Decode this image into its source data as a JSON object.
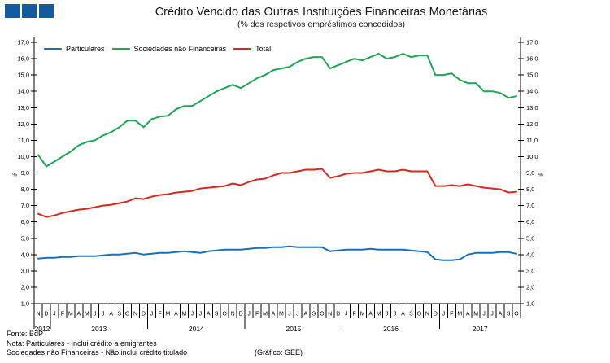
{
  "logo": {
    "color": "#15599E",
    "square_count": 3
  },
  "chart_data": {
    "type": "line",
    "title": "Crédito Vencido das Outras Instituições Financeiras Monetárias",
    "subtitle": "(% dos respetivos empréstimos concedidos)",
    "xlabel": "",
    "ylabel": "%",
    "ylim": [
      1.0,
      17.0
    ],
    "ytick_step": 1.0,
    "ytick_labels": [
      "1,0",
      "2,0",
      "3,0",
      "4,0",
      "5,0",
      "6,0",
      "7,0",
      "8,0",
      "9,0",
      "10,0",
      "11,0",
      "12,0",
      "13,0",
      "14,0",
      "15,0",
      "16,0",
      "17,0"
    ],
    "grid": false,
    "legend_position": "top-left-inside",
    "x_months": [
      "N",
      "D",
      "J",
      "F",
      "M",
      "A",
      "M",
      "J",
      "J",
      "A",
      "S",
      "O",
      "N",
      "D",
      "J",
      "F",
      "M",
      "A",
      "M",
      "J",
      "J",
      "A",
      "S",
      "O",
      "N",
      "D",
      "J",
      "F",
      "M",
      "A",
      "M",
      "J",
      "J",
      "A",
      "S",
      "O",
      "N",
      "D",
      "J",
      "F",
      "M",
      "A",
      "M",
      "J",
      "J",
      "A",
      "S",
      "O",
      "N",
      "D",
      "J",
      "F",
      "M",
      "A",
      "M",
      "J",
      "J",
      "A",
      "S",
      "O"
    ],
    "years": [
      {
        "label": "2012",
        "months": 2
      },
      {
        "label": "2013",
        "months": 12
      },
      {
        "label": "2014",
        "months": 12
      },
      {
        "label": "2015",
        "months": 12
      },
      {
        "label": "2016",
        "months": 12
      },
      {
        "label": "2017",
        "months": 10
      }
    ],
    "series": [
      {
        "id": "particulares",
        "name": "Particulares",
        "color": "#1D6FB5",
        "values": [
          3.75,
          3.8,
          3.8,
          3.85,
          3.85,
          3.9,
          3.9,
          3.9,
          3.95,
          4.0,
          4.0,
          4.05,
          4.1,
          4.0,
          4.05,
          4.1,
          4.1,
          4.15,
          4.2,
          4.15,
          4.1,
          4.2,
          4.25,
          4.3,
          4.3,
          4.3,
          4.35,
          4.4,
          4.4,
          4.45,
          4.45,
          4.5,
          4.45,
          4.45,
          4.45,
          4.45,
          4.2,
          4.25,
          4.3,
          4.3,
          4.3,
          4.35,
          4.3,
          4.3,
          4.3,
          4.3,
          4.25,
          4.2,
          4.15,
          3.7,
          3.65,
          3.65,
          3.7,
          4.0,
          4.1,
          4.1,
          4.1,
          4.15,
          4.15,
          4.05
        ]
      },
      {
        "id": "sociedades-nao-financeiras",
        "name": "Sociedades não Financeiras",
        "color": "#21A457",
        "values": [
          10.1,
          9.4,
          9.7,
          10.0,
          10.3,
          10.7,
          10.9,
          11.0,
          11.3,
          11.5,
          11.8,
          12.2,
          12.2,
          11.8,
          12.3,
          12.45,
          12.5,
          12.9,
          13.1,
          13.1,
          13.4,
          13.7,
          14.0,
          14.2,
          14.4,
          14.2,
          14.5,
          14.8,
          15.0,
          15.3,
          15.4,
          15.5,
          15.8,
          16.0,
          16.1,
          16.1,
          15.4,
          15.6,
          15.8,
          16.0,
          15.9,
          16.1,
          16.3,
          16.0,
          16.1,
          16.3,
          16.1,
          16.2,
          16.2,
          15.0,
          15.0,
          15.1,
          14.7,
          14.5,
          14.5,
          14.0,
          14.0,
          13.9,
          13.6,
          13.7
        ]
      },
      {
        "id": "total",
        "name": "Total",
        "color": "#D02B24",
        "values": [
          6.5,
          6.3,
          6.4,
          6.55,
          6.65,
          6.75,
          6.8,
          6.9,
          7.0,
          7.05,
          7.15,
          7.25,
          7.45,
          7.4,
          7.55,
          7.65,
          7.7,
          7.8,
          7.85,
          7.9,
          8.05,
          8.1,
          8.15,
          8.2,
          8.35,
          8.25,
          8.45,
          8.6,
          8.65,
          8.85,
          9.0,
          9.0,
          9.1,
          9.2,
          9.2,
          9.25,
          8.7,
          8.8,
          8.95,
          9.0,
          9.0,
          9.1,
          9.2,
          9.1,
          9.1,
          9.2,
          9.1,
          9.1,
          9.1,
          8.2,
          8.2,
          8.25,
          8.2,
          8.3,
          8.2,
          8.1,
          8.05,
          8.0,
          7.8,
          7.85
        ]
      }
    ]
  },
  "footer": {
    "fonte": "Fonte: BdP",
    "nota_line1": "Nota: Particulares - Inclui crédito a emigrantes",
    "nota_line2": "Sociedades não Financeiras - Não inclui crédito titulado",
    "grafico": "(Gráfico: GEE)"
  }
}
